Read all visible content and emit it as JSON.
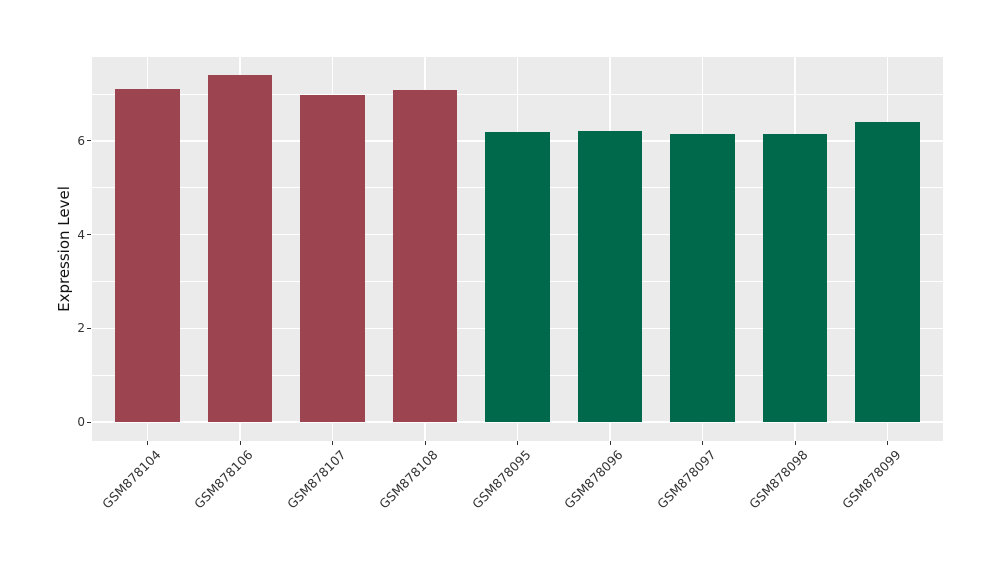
{
  "chart_data": {
    "type": "bar",
    "title": "",
    "xlabel": "",
    "ylabel": "Expression Level",
    "categories": [
      "GSM878104",
      "GSM878106",
      "GSM878107",
      "GSM878108",
      "GSM878095",
      "GSM878096",
      "GSM878097",
      "GSM878098",
      "GSM878099"
    ],
    "values": [
      7.11,
      7.4,
      6.98,
      7.09,
      6.19,
      6.21,
      6.15,
      6.15,
      6.41
    ],
    "bar_colors": [
      "#9C4551",
      "#9C4551",
      "#9C4551",
      "#9C4551",
      "#00684B",
      "#00684B",
      "#00684B",
      "#00684B",
      "#00684B"
    ],
    "yticks": [
      0,
      2,
      4,
      6
    ],
    "minor_yticks": [
      1,
      3,
      5,
      7
    ],
    "ylim": [
      -0.4,
      7.79
    ],
    "bar_width_fraction": 0.7,
    "x_label_rotation_deg": 45,
    "grid": true,
    "legend_position": "none",
    "plot_background": "#EBEBEB",
    "grid_color": "#FFFFFF",
    "tick_color": "#333333"
  }
}
